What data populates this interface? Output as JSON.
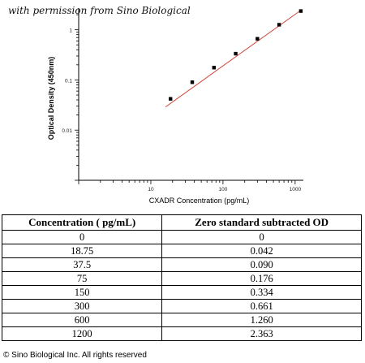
{
  "watermark": "with permission from Sino Biological",
  "chart_data": {
    "type": "scatter",
    "xlabel": "CXADR Concentration (pg/mL)",
    "ylabel": "Optical Density (450nm)",
    "xscale": "log",
    "yscale": "log",
    "xlim": [
      1,
      1300
    ],
    "ylim": [
      0.001,
      2.7
    ],
    "x_ticks": [
      {
        "value": 10,
        "label": "10"
      },
      {
        "value": 100,
        "label": "100"
      },
      {
        "value": 1000,
        "label": "1000"
      }
    ],
    "y_ticks": [
      {
        "value": 0.01,
        "label": "0.01"
      },
      {
        "value": 0.1,
        "label": "0.1"
      },
      {
        "value": 1,
        "label": "1"
      }
    ],
    "points": [
      {
        "x": 18.75,
        "y": 0.042
      },
      {
        "x": 37.5,
        "y": 0.09
      },
      {
        "x": 75,
        "y": 0.176
      },
      {
        "x": 150,
        "y": 0.334
      },
      {
        "x": 300,
        "y": 0.661
      },
      {
        "x": 600,
        "y": 1.26
      },
      {
        "x": 1200,
        "y": 2.363
      }
    ],
    "fit_line": {
      "x": [
        16,
        1200
      ],
      "y": [
        0.029,
        2.45
      ]
    },
    "colors": {
      "line": "#d0443a",
      "marker": "#000000",
      "axis": "#000000"
    }
  },
  "table": {
    "headers": [
      "Concentration ( pg/mL)",
      "Zero standard subtracted OD"
    ],
    "rows": [
      [
        "0",
        "0"
      ],
      [
        "18.75",
        "0.042"
      ],
      [
        "37.5",
        "0.090"
      ],
      [
        "75",
        "0.176"
      ],
      [
        "150",
        "0.334"
      ],
      [
        "300",
        "0.661"
      ],
      [
        "600",
        "1.260"
      ],
      [
        "1200",
        "2.363"
      ]
    ]
  },
  "footer": "© Sino Biological Inc. All rights reserved"
}
